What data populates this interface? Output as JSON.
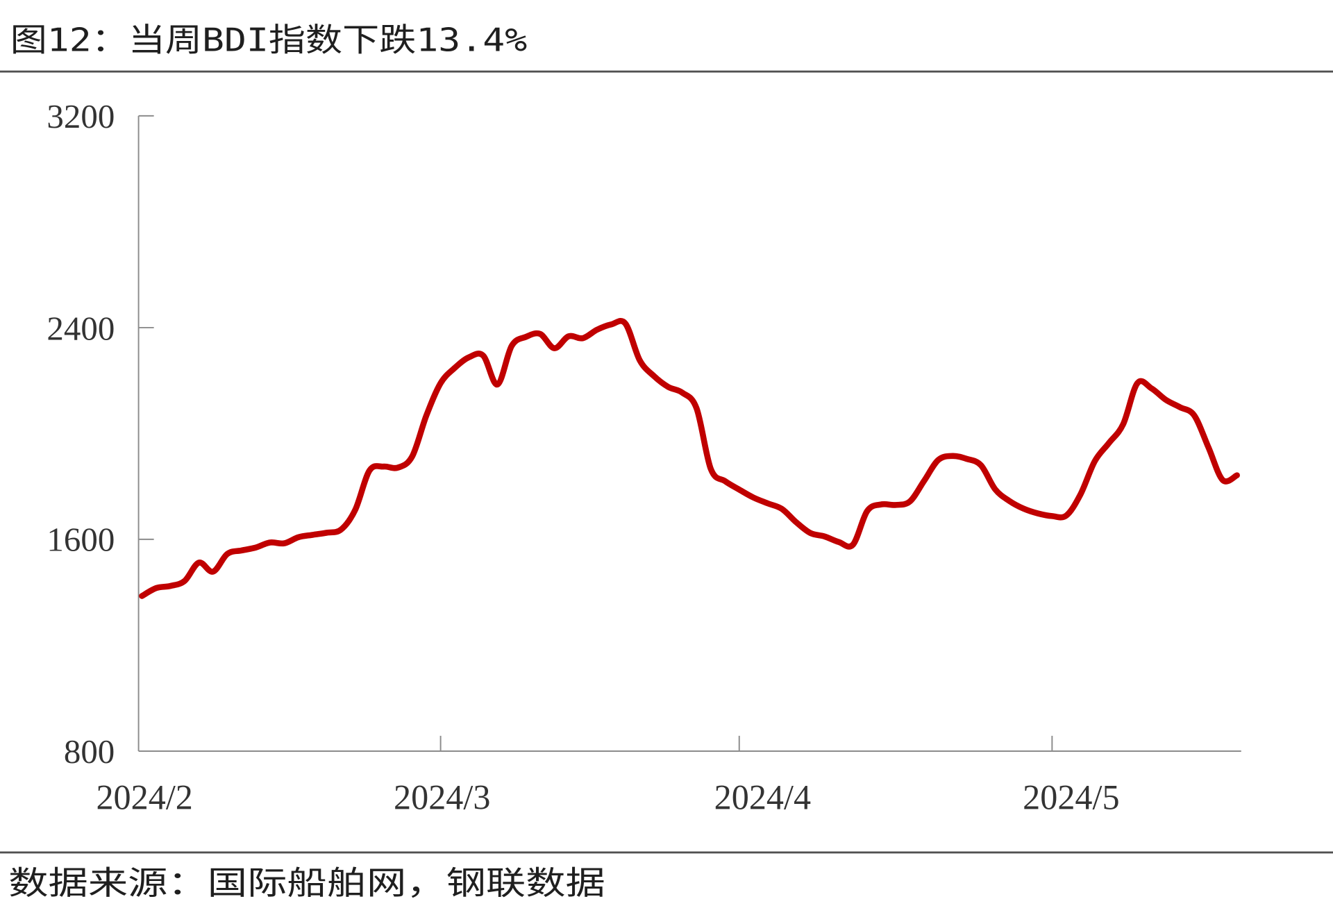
{
  "source": "数据来源：国际船舶网，钢联数据",
  "colors": {
    "series": "#C00000",
    "axis": "#8C8C8C",
    "rules": "#505050",
    "text": "#1F1F1F"
  },
  "chart_data": {
    "type": "line",
    "title": "图12：当周BDI指数下跌13.4%",
    "xlabel": "",
    "ylabel": "",
    "x_tick_labels": [
      "2024/2",
      "2024/3",
      "2024/4",
      "2024/5"
    ],
    "y_ticks": [
      800,
      1600,
      2400,
      3200
    ],
    "ylim": [
      800,
      3200
    ],
    "grid": false,
    "legend": "none",
    "x": [
      "2024-02-01",
      "2024-02-02",
      "2024-02-05",
      "2024-02-06",
      "2024-02-07",
      "2024-02-08",
      "2024-02-09",
      "2024-02-12",
      "2024-02-13",
      "2024-02-14",
      "2024-02-15",
      "2024-02-16",
      "2024-02-19",
      "2024-02-20",
      "2024-02-21",
      "2024-02-22",
      "2024-02-23",
      "2024-02-26",
      "2024-02-27",
      "2024-02-28",
      "2024-02-29",
      "2024-03-01",
      "2024-03-04",
      "2024-03-05",
      "2024-03-06",
      "2024-03-07",
      "2024-03-08",
      "2024-03-11",
      "2024-03-12",
      "2024-03-13",
      "2024-03-14",
      "2024-03-15",
      "2024-03-18",
      "2024-03-19",
      "2024-03-20",
      "2024-03-21",
      "2024-03-22",
      "2024-03-25",
      "2024-03-26",
      "2024-03-27",
      "2024-03-28",
      "2024-03-29",
      "2024-04-01",
      "2024-04-02",
      "2024-04-03",
      "2024-04-04",
      "2024-04-05",
      "2024-04-08",
      "2024-04-09",
      "2024-04-10",
      "2024-04-11",
      "2024-04-12",
      "2024-04-15",
      "2024-04-16",
      "2024-04-17",
      "2024-04-18",
      "2024-04-19",
      "2024-04-22",
      "2024-04-23",
      "2024-04-24",
      "2024-04-25",
      "2024-04-26",
      "2024-04-29",
      "2024-04-30",
      "2024-05-01",
      "2024-05-02",
      "2024-05-03",
      "2024-05-06",
      "2024-05-07",
      "2024-05-08",
      "2024-05-09",
      "2024-05-10",
      "2024-05-13",
      "2024-05-14",
      "2024-05-15",
      "2024-05-16",
      "2024-05-17",
      "2024-05-20"
    ],
    "series": [
      {
        "values": [
          1386,
          1416,
          1424,
          1443,
          1512,
          1478,
          1545,
          1558,
          1569,
          1588,
          1585,
          1608,
          1617,
          1625,
          1637,
          1712,
          1860,
          1875,
          1871,
          1913,
          2068,
          2190,
          2248,
          2288,
          2294,
          2185,
          2331,
          2365,
          2376,
          2322,
          2367,
          2360,
          2392,
          2412,
          2415,
          2277,
          2217,
          2176,
          2154,
          2095,
          1866,
          1820,
          1788,
          1758,
          1736,
          1715,
          1665,
          1624,
          1611,
          1590,
          1580,
          1707,
          1732,
          1730,
          1743,
          1821,
          1900,
          1915,
          1904,
          1880,
          1789,
          1745,
          1716,
          1698,
          1688,
          1690,
          1770,
          1895,
          1964,
          2035,
          2190,
          2170,
          2127,
          2099,
          2068,
          1947,
          1824,
          1842
        ]
      }
    ]
  }
}
